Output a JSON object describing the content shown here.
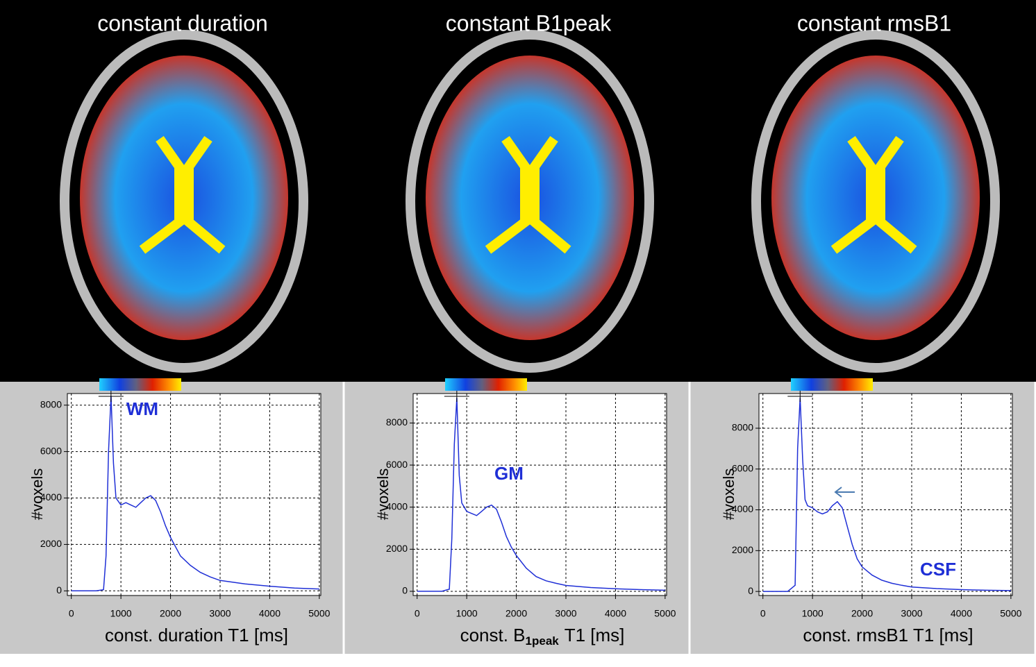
{
  "chart_data": [
    {
      "type": "line",
      "title": "constant duration",
      "ylabel": "#voxels",
      "xlabel": "const. duration  T1 [ms]",
      "annotation": "WM",
      "color": "#1f2fd6",
      "grid": true,
      "x": [
        0,
        500,
        650,
        700,
        750,
        800,
        850,
        900,
        1000,
        1100,
        1200,
        1300,
        1400,
        1500,
        1600,
        1700,
        1800,
        1900,
        2000,
        2200,
        2400,
        2600,
        2800,
        3000,
        3500,
        4000,
        4500,
        5000
      ],
      "values": [
        0,
        0,
        50,
        1500,
        6000,
        8400,
        5500,
        4000,
        3700,
        3800,
        3700,
        3600,
        3800,
        4000,
        4100,
        3900,
        3400,
        2800,
        2300,
        1500,
        1100,
        800,
        600,
        450,
        300,
        200,
        120,
        80
      ],
      "xlim": [
        -80,
        5030
      ],
      "ylim": [
        -200,
        8500
      ],
      "xticks": [
        0,
        1000,
        2000,
        3000,
        4000,
        5000
      ],
      "yticks": [
        0,
        2000,
        4000,
        6000,
        8000
      ]
    },
    {
      "type": "line",
      "title": "constant B1peak",
      "ylabel": "#voxels",
      "xlabel": {
        "main": "const. B",
        "subscript": "1peak",
        "unit": "T1 [ms]"
      },
      "annotation": "GM",
      "color": "#1f2fd6",
      "grid": true,
      "x": [
        0,
        500,
        650,
        700,
        750,
        800,
        850,
        900,
        1000,
        1100,
        1200,
        1300,
        1400,
        1500,
        1600,
        1700,
        1800,
        1900,
        2000,
        2200,
        2400,
        2600,
        2800,
        3000,
        3500,
        4000,
        4500,
        5000
      ],
      "values": [
        0,
        0,
        100,
        2500,
        7000,
        9200,
        5500,
        4200,
        3800,
        3700,
        3600,
        3800,
        4000,
        4100,
        3900,
        3300,
        2600,
        2100,
        1700,
        1100,
        700,
        500,
        380,
        280,
        180,
        120,
        80,
        50
      ],
      "xlim": [
        -80,
        5030
      ],
      "ylim": [
        -200,
        9400
      ],
      "xticks": [
        0,
        1000,
        2000,
        3000,
        4000,
        5000
      ],
      "yticks": [
        0,
        2000,
        4000,
        6000,
        8000
      ]
    },
    {
      "type": "line",
      "title": "constant rmsB1",
      "ylabel": "#voxels",
      "xlabel": "const. rmsB1  T1 [ms]",
      "annotation": "CSF",
      "color": "#1f2fd6",
      "grid": true,
      "x": [
        0,
        500,
        650,
        700,
        750,
        800,
        850,
        900,
        1000,
        1100,
        1200,
        1300,
        1400,
        1500,
        1600,
        1700,
        1800,
        1900,
        2000,
        2200,
        2400,
        2600,
        2800,
        3000,
        3500,
        4000,
        4500,
        5000
      ],
      "values": [
        0,
        0,
        300,
        7000,
        9500,
        6500,
        4500,
        4200,
        4100,
        3900,
        3800,
        3900,
        4200,
        4400,
        4100,
        3200,
        2300,
        1600,
        1200,
        800,
        550,
        400,
        300,
        220,
        140,
        90,
        60,
        40
      ],
      "xlim": [
        -80,
        5030
      ],
      "ylim": [
        -200,
        9700
      ],
      "xticks": [
        0,
        1000,
        2000,
        3000,
        4000,
        5000
      ],
      "yticks": [
        0,
        2000,
        4000,
        6000,
        8000
      ]
    }
  ]
}
